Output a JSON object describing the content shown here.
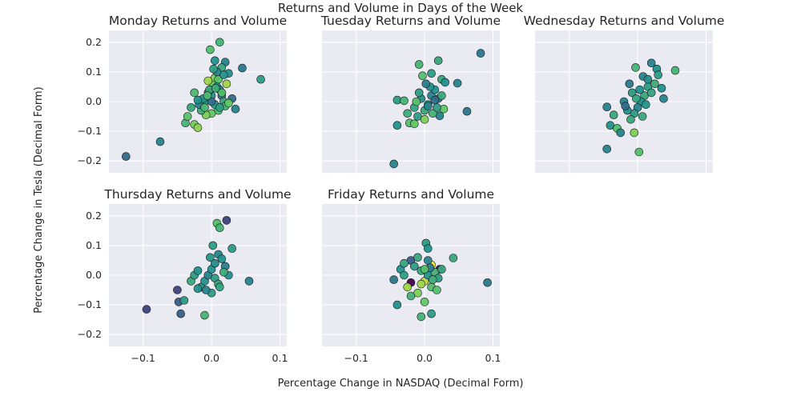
{
  "chart_data": {
    "type": "scatter",
    "title": "Returns and Volume in Days of the Week",
    "xlabel": "Percentage Change in NASDAQ (Decimal Form)",
    "ylabel": "Percentage Change in Tesla (Decimal Form)",
    "xlim": [
      -0.15,
      0.11
    ],
    "ylim": [
      -0.24,
      0.24
    ],
    "xticks": [
      "−0.1",
      "0.0",
      "0.1"
    ],
    "yticks": [
      "−0.2",
      "−0.1",
      "0.0",
      "0.1",
      "0.2"
    ],
    "xtick_values": [
      -0.1,
      0.0,
      0.1
    ],
    "ytick_values": [
      -0.2,
      -0.1,
      0.0,
      0.1,
      0.2
    ],
    "grid": true,
    "sharex": true,
    "sharey": true,
    "colormap": "viridis (color encodes trading volume)",
    "panels": [
      {
        "title": "Monday Returns and Volume",
        "points": [
          [
            -0.125,
            -0.185,
            0.35
          ],
          [
            -0.075,
            -0.135,
            0.45
          ],
          [
            0.072,
            0.075,
            0.55
          ],
          [
            0.045,
            0.113,
            0.4
          ],
          [
            -0.002,
            0.175,
            0.7
          ],
          [
            0.012,
            0.2,
            0.65
          ],
          [
            0.005,
            0.138,
            0.5
          ],
          [
            0.02,
            0.133,
            0.45
          ],
          [
            0.025,
            0.095,
            0.5
          ],
          [
            0.015,
            0.115,
            0.6
          ],
          [
            0.035,
            -0.025,
            0.45
          ],
          [
            0.03,
            0.01,
            0.35
          ],
          [
            -0.038,
            -0.072,
            0.65
          ],
          [
            -0.035,
            -0.05,
            0.72
          ],
          [
            -0.025,
            -0.077,
            0.78
          ],
          [
            -0.02,
            -0.088,
            0.82
          ],
          [
            -0.03,
            -0.02,
            0.6
          ],
          [
            -0.025,
            0.03,
            0.68
          ],
          [
            -0.01,
            0.0,
            0.55
          ],
          [
            0.0,
            0.02,
            0.5
          ],
          [
            0.002,
            0.06,
            0.75
          ],
          [
            0.005,
            0.08,
            0.8
          ],
          [
            -0.005,
            0.07,
            0.85
          ],
          [
            0.01,
            0.075,
            0.72
          ],
          [
            0.008,
            0.05,
            0.48
          ],
          [
            0.012,
            0.04,
            0.42
          ],
          [
            0.015,
            0.02,
            0.4
          ],
          [
            0.018,
            0.0,
            0.6
          ],
          [
            0.02,
            -0.015,
            0.65
          ],
          [
            0.01,
            -0.03,
            0.7
          ],
          [
            0.0,
            -0.04,
            0.75
          ],
          [
            -0.008,
            -0.045,
            0.8
          ],
          [
            -0.015,
            -0.03,
            0.62
          ],
          [
            -0.018,
            -0.01,
            0.45
          ],
          [
            -0.012,
            0.01,
            0.5
          ],
          [
            -0.005,
            0.03,
            0.58
          ],
          [
            0.005,
            -0.01,
            0.52
          ],
          [
            0.012,
            -0.02,
            0.55
          ],
          [
            0.022,
            0.06,
            0.85
          ],
          [
            0.018,
            0.09,
            0.5
          ],
          [
            0.008,
            0.1,
            0.45
          ],
          [
            0.003,
            0.11,
            0.55
          ],
          [
            -0.003,
            0.04,
            0.6
          ],
          [
            -0.01,
            -0.02,
            0.66
          ],
          [
            0.015,
            0.03,
            0.7
          ],
          [
            0.0,
            0.0,
            0.35
          ],
          [
            -0.02,
            0.005,
            0.5
          ],
          [
            0.025,
            -0.005,
            0.75
          ],
          [
            0.006,
            0.045,
            0.62
          ],
          [
            -0.006,
            0.02,
            0.68
          ]
        ]
      },
      {
        "title": "Tuesday Returns and Volume",
        "points": [
          [
            0.082,
            0.163,
            0.4
          ],
          [
            -0.045,
            -0.21,
            0.45
          ],
          [
            0.062,
            -0.033,
            0.4
          ],
          [
            0.048,
            0.062,
            0.45
          ],
          [
            0.02,
            0.138,
            0.6
          ],
          [
            -0.008,
            0.125,
            0.65
          ],
          [
            -0.003,
            0.087,
            0.7
          ],
          [
            0.01,
            0.095,
            0.55
          ],
          [
            0.025,
            0.075,
            0.6
          ],
          [
            0.028,
            -0.025,
            0.75
          ],
          [
            0.022,
            -0.048,
            0.45
          ],
          [
            -0.04,
            0.005,
            0.55
          ],
          [
            -0.04,
            -0.08,
            0.5
          ],
          [
            -0.022,
            -0.072,
            0.7
          ],
          [
            -0.015,
            -0.075,
            0.75
          ],
          [
            -0.03,
            0.003,
            0.65
          ],
          [
            -0.01,
            -0.05,
            0.55
          ],
          [
            0.0,
            -0.03,
            0.6
          ],
          [
            0.005,
            -0.01,
            0.52
          ],
          [
            0.01,
            0.02,
            0.45
          ],
          [
            0.015,
            0.04,
            0.5
          ],
          [
            0.02,
            0.01,
            0.4
          ],
          [
            -0.005,
            0.01,
            0.48
          ],
          [
            -0.015,
            -0.02,
            0.58
          ],
          [
            0.008,
            0.05,
            0.5
          ],
          [
            0.012,
            -0.04,
            0.65
          ],
          [
            0.018,
            -0.02,
            0.55
          ],
          [
            0.002,
            0.06,
            0.42
          ],
          [
            0.025,
            0.02,
            0.6
          ],
          [
            -0.012,
            0.0,
            0.7
          ],
          [
            0.0,
            -0.06,
            0.8
          ],
          [
            -0.025,
            -0.04,
            0.62
          ],
          [
            0.03,
            0.065,
            0.5
          ],
          [
            0.005,
            -0.015,
            0.45
          ],
          [
            -0.008,
            0.03,
            0.55
          ],
          [
            0.015,
            0.005,
            0.35
          ]
        ]
      },
      {
        "title": "Wednesday Returns and Volume",
        "points": [
          [
            0.055,
            0.105,
            0.65
          ],
          [
            -0.045,
            -0.16,
            0.45
          ],
          [
            0.002,
            -0.17,
            0.7
          ],
          [
            -0.045,
            -0.018,
            0.45
          ],
          [
            -0.04,
            -0.08,
            0.5
          ],
          [
            -0.035,
            -0.045,
            0.6
          ],
          [
            -0.03,
            -0.09,
            0.7
          ],
          [
            -0.025,
            -0.105,
            0.45
          ],
          [
            -0.005,
            -0.105,
            0.8
          ],
          [
            0.02,
            0.13,
            0.45
          ],
          [
            0.028,
            0.11,
            0.5
          ],
          [
            0.03,
            0.09,
            0.55
          ],
          [
            0.035,
            0.045,
            0.5
          ],
          [
            0.038,
            0.01,
            0.45
          ],
          [
            0.008,
            0.085,
            0.45
          ],
          [
            -0.003,
            0.115,
            0.65
          ],
          [
            0.015,
            0.05,
            0.55
          ],
          [
            0.01,
            0.02,
            0.6
          ],
          [
            0.005,
            0.0,
            0.5
          ],
          [
            0.0,
            -0.02,
            0.45
          ],
          [
            -0.005,
            -0.04,
            0.55
          ],
          [
            -0.01,
            -0.06,
            0.6
          ],
          [
            -0.015,
            -0.03,
            0.5
          ],
          [
            -0.02,
            0.0,
            0.45
          ],
          [
            -0.008,
            0.03,
            0.55
          ],
          [
            0.012,
            -0.01,
            0.52
          ],
          [
            0.02,
            0.03,
            0.58
          ],
          [
            0.025,
            0.06,
            0.62
          ],
          [
            -0.012,
            0.06,
            0.4
          ],
          [
            -0.018,
            -0.015,
            0.35
          ],
          [
            0.003,
            0.04,
            0.5
          ],
          [
            0.007,
            -0.05,
            0.6
          ],
          [
            -0.002,
            0.01,
            0.58
          ],
          [
            0.015,
            0.075,
            0.48
          ]
        ]
      },
      {
        "title": "Thursday Returns and Volume",
        "points": [
          [
            0.022,
            0.185,
            0.2
          ],
          [
            0.008,
            0.175,
            0.7
          ],
          [
            0.012,
            0.16,
            0.65
          ],
          [
            -0.095,
            -0.115,
            0.2
          ],
          [
            -0.05,
            -0.05,
            0.2
          ],
          [
            -0.048,
            -0.09,
            0.3
          ],
          [
            -0.045,
            -0.13,
            0.3
          ],
          [
            -0.04,
            -0.085,
            0.55
          ],
          [
            -0.01,
            -0.135,
            0.65
          ],
          [
            0.055,
            -0.02,
            0.45
          ],
          [
            0.03,
            0.09,
            0.55
          ],
          [
            0.002,
            0.1,
            0.55
          ],
          [
            0.01,
            0.07,
            0.45
          ],
          [
            0.015,
            0.055,
            0.5
          ],
          [
            0.02,
            0.03,
            0.45
          ],
          [
            0.025,
            0.0,
            0.5
          ],
          [
            -0.03,
            -0.02,
            0.6
          ],
          [
            -0.025,
            0.0,
            0.55
          ],
          [
            -0.02,
            0.015,
            0.5
          ],
          [
            -0.015,
            -0.04,
            0.55
          ],
          [
            -0.01,
            -0.02,
            0.5
          ],
          [
            -0.005,
            0.0,
            0.45
          ],
          [
            0.0,
            0.02,
            0.5
          ],
          [
            0.005,
            -0.01,
            0.55
          ],
          [
            0.01,
            -0.03,
            0.6
          ],
          [
            0.0,
            -0.06,
            0.55
          ],
          [
            0.005,
            0.04,
            0.48
          ],
          [
            -0.002,
            0.06,
            0.52
          ],
          [
            0.018,
            0.01,
            0.62
          ],
          [
            -0.008,
            -0.05,
            0.45
          ],
          [
            0.012,
            -0.04,
            0.58
          ],
          [
            -0.02,
            -0.045,
            0.5
          ]
        ]
      },
      {
        "title": "Friday Returns and Volume",
        "points": [
          [
            0.092,
            -0.025,
            0.4
          ],
          [
            0.042,
            0.058,
            0.6
          ],
          [
            0.002,
            0.108,
            0.55
          ],
          [
            0.005,
            0.09,
            0.5
          ],
          [
            -0.04,
            -0.1,
            0.5
          ],
          [
            -0.005,
            -0.14,
            0.65
          ],
          [
            0.01,
            -0.13,
            0.55
          ],
          [
            0.0,
            -0.09,
            0.75
          ],
          [
            -0.02,
            -0.025,
            0.0
          ],
          [
            0.01,
            0.035,
            0.98
          ],
          [
            0.022,
            0.02,
            0.05
          ],
          [
            -0.02,
            0.05,
            0.3
          ],
          [
            -0.045,
            -0.015,
            0.4
          ],
          [
            -0.035,
            0.02,
            0.5
          ],
          [
            -0.03,
            0.0,
            0.55
          ],
          [
            -0.025,
            -0.04,
            0.85
          ],
          [
            -0.015,
            0.03,
            0.55
          ],
          [
            -0.01,
            -0.06,
            0.8
          ],
          [
            -0.005,
            0.015,
            0.6
          ],
          [
            0.0,
            -0.02,
            0.9
          ],
          [
            0.005,
            0.0,
            0.5
          ],
          [
            0.01,
            -0.04,
            0.7
          ],
          [
            0.015,
            0.01,
            0.65
          ],
          [
            0.02,
            -0.01,
            0.55
          ],
          [
            0.025,
            0.02,
            0.6
          ],
          [
            -0.01,
            0.06,
            0.6
          ],
          [
            0.005,
            0.05,
            0.45
          ],
          [
            -0.02,
            -0.07,
            0.65
          ],
          [
            0.018,
            -0.05,
            0.7
          ],
          [
            -0.005,
            -0.03,
            0.85
          ],
          [
            0.008,
            0.025,
            0.4
          ],
          [
            0.012,
            -0.015,
            0.62
          ],
          [
            -0.03,
            0.04,
            0.58
          ],
          [
            0.0,
            0.02,
            0.7
          ]
        ]
      }
    ]
  }
}
